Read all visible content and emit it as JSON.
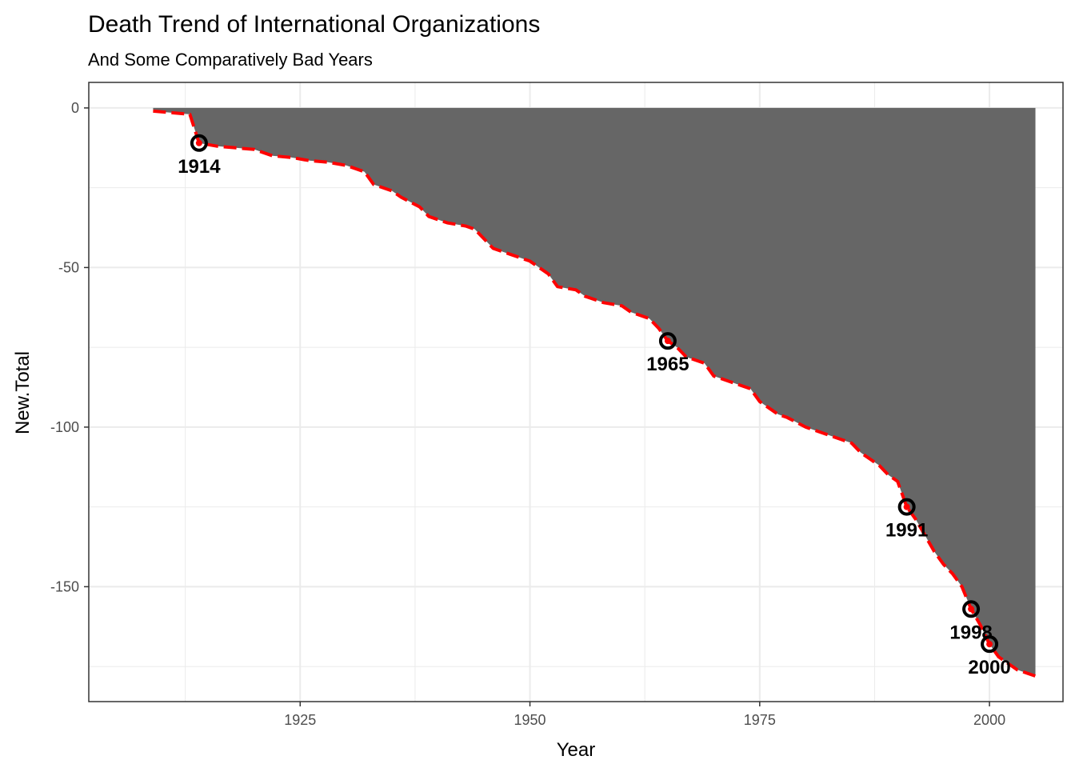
{
  "chart_data": {
    "type": "area",
    "title": "Death Trend of International Organizations",
    "subtitle": "And Some Comparatively Bad Years",
    "xlabel": "Year",
    "ylabel": "New.Total",
    "xlim": [
      1902,
      2008
    ],
    "ylim": [
      -186,
      8
    ],
    "x_ticks": [
      1925,
      1950,
      1975,
      2000
    ],
    "y_ticks": [
      0,
      -50,
      -100,
      -150
    ],
    "grid": true,
    "series": [
      {
        "x": [
          1909,
          1911,
          1913,
          1914,
          1916,
          1918,
          1920,
          1922,
          1924,
          1926,
          1928,
          1930,
          1931,
          1932,
          1933,
          1935,
          1936,
          1938,
          1939,
          1941,
          1943,
          1944,
          1946,
          1948,
          1950,
          1951,
          1952,
          1953,
          1955,
          1956,
          1958,
          1960,
          1961,
          1963,
          1964,
          1965,
          1966,
          1967,
          1969,
          1970,
          1971,
          1973,
          1974,
          1975,
          1976,
          1977,
          1978,
          1980,
          1981,
          1983,
          1984,
          1985,
          1986,
          1987,
          1988,
          1989,
          1990,
          1991,
          1992,
          1993,
          1994,
          1995,
          1996,
          1997,
          1998,
          1999,
          2000,
          2001,
          2002,
          2003,
          2004,
          2005
        ],
        "y": [
          -1,
          -1.5,
          -2,
          -11,
          -12,
          -12.5,
          -13,
          -15,
          -15.5,
          -16.5,
          -17,
          -18,
          -19,
          -20,
          -24,
          -26,
          -28,
          -31,
          -34,
          -36,
          -37,
          -38,
          -44,
          -46,
          -48,
          -50,
          -52,
          -56,
          -57,
          -59,
          -61,
          -62,
          -64,
          -66,
          -69,
          -73,
          -75,
          -78,
          -80,
          -84,
          -85,
          -87,
          -88,
          -92,
          -94,
          -96,
          -97,
          -100,
          -101,
          -103,
          -104,
          -105,
          -108,
          -110,
          -112,
          -115,
          -117,
          -125,
          -129,
          -134,
          -139,
          -143,
          -146,
          -150,
          -157,
          -162,
          -168,
          -172,
          -174,
          -176,
          -177,
          -178
        ]
      }
    ],
    "highlights": [
      {
        "x": 1914,
        "y": -11,
        "label": "1914"
      },
      {
        "x": 1965,
        "y": -73,
        "label": "1965"
      },
      {
        "x": 1991,
        "y": -125,
        "label": "1991"
      },
      {
        "x": 1998,
        "y": -157,
        "label": "1998"
      },
      {
        "x": 2000,
        "y": -168,
        "label": "2000"
      }
    ],
    "colors": {
      "area": "#666666",
      "line": "#ff0000",
      "outline": "#000000",
      "grid": "#ebebeb",
      "panel_border": "#333333"
    }
  }
}
